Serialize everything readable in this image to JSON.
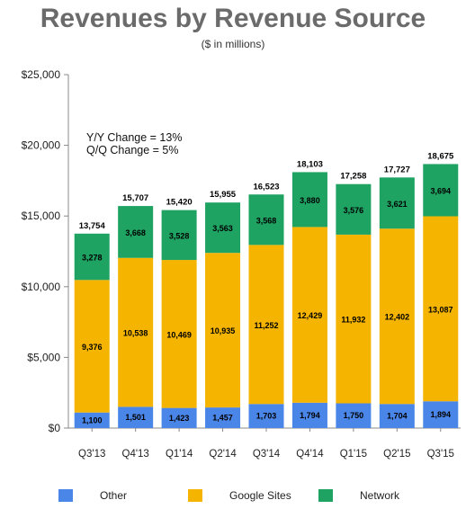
{
  "chart_data": {
    "type": "bar",
    "stacked": true,
    "title": "Revenues by Revenue Source",
    "subtitle": "($ in millions)",
    "categories": [
      "Q3'13",
      "Q4'13",
      "Q1'14",
      "Q2'14",
      "Q3'14",
      "Q4'14",
      "Q1'15",
      "Q2'15",
      "Q3'15"
    ],
    "series": [
      {
        "name": "Other",
        "color": "#4a86e8",
        "values": [
          1100,
          1501,
          1423,
          1457,
          1703,
          1794,
          1750,
          1704,
          1894
        ],
        "labels": [
          "1,100",
          "1,501",
          "1,423",
          "1,457",
          "1,703",
          "1,794",
          "1,750",
          "1,704",
          "1,894"
        ]
      },
      {
        "name": "Google Sites",
        "color": "#f4b400",
        "values": [
          9376,
          10538,
          10469,
          10935,
          11252,
          12429,
          11932,
          12402,
          13087
        ],
        "labels": [
          "9,376",
          "10,538",
          "10,469",
          "10,935",
          "11,252",
          "12,429",
          "11,932",
          "12,402",
          "13,087"
        ]
      },
      {
        "name": "Network",
        "color": "#1ea362",
        "values": [
          3278,
          3668,
          3528,
          3563,
          3568,
          3880,
          3576,
          3621,
          3694
        ],
        "labels": [
          "3,278",
          "3,668",
          "3,528",
          "3,563",
          "3,568",
          "3,880",
          "3,576",
          "3,621",
          "3,694"
        ]
      }
    ],
    "totals": [
      13754,
      15707,
      15420,
      15955,
      16523,
      18103,
      17258,
      17727,
      18675
    ],
    "total_labels": [
      "13,754",
      "15,707",
      "15,420",
      "15,955",
      "16,523",
      "18,103",
      "17,258",
      "17,727",
      "18,675"
    ],
    "ylim": [
      0,
      25000
    ],
    "yticks": [
      0,
      5000,
      10000,
      15000,
      20000,
      25000
    ],
    "ytick_labels": [
      "$0",
      "$5,000",
      "$10,000",
      "$15,000",
      "$20,000",
      "$25,000"
    ],
    "annotations": [
      "Y/Y Change = 13%",
      "Q/Q Change = 5%"
    ],
    "legend_position": "bottom",
    "grid": false
  }
}
